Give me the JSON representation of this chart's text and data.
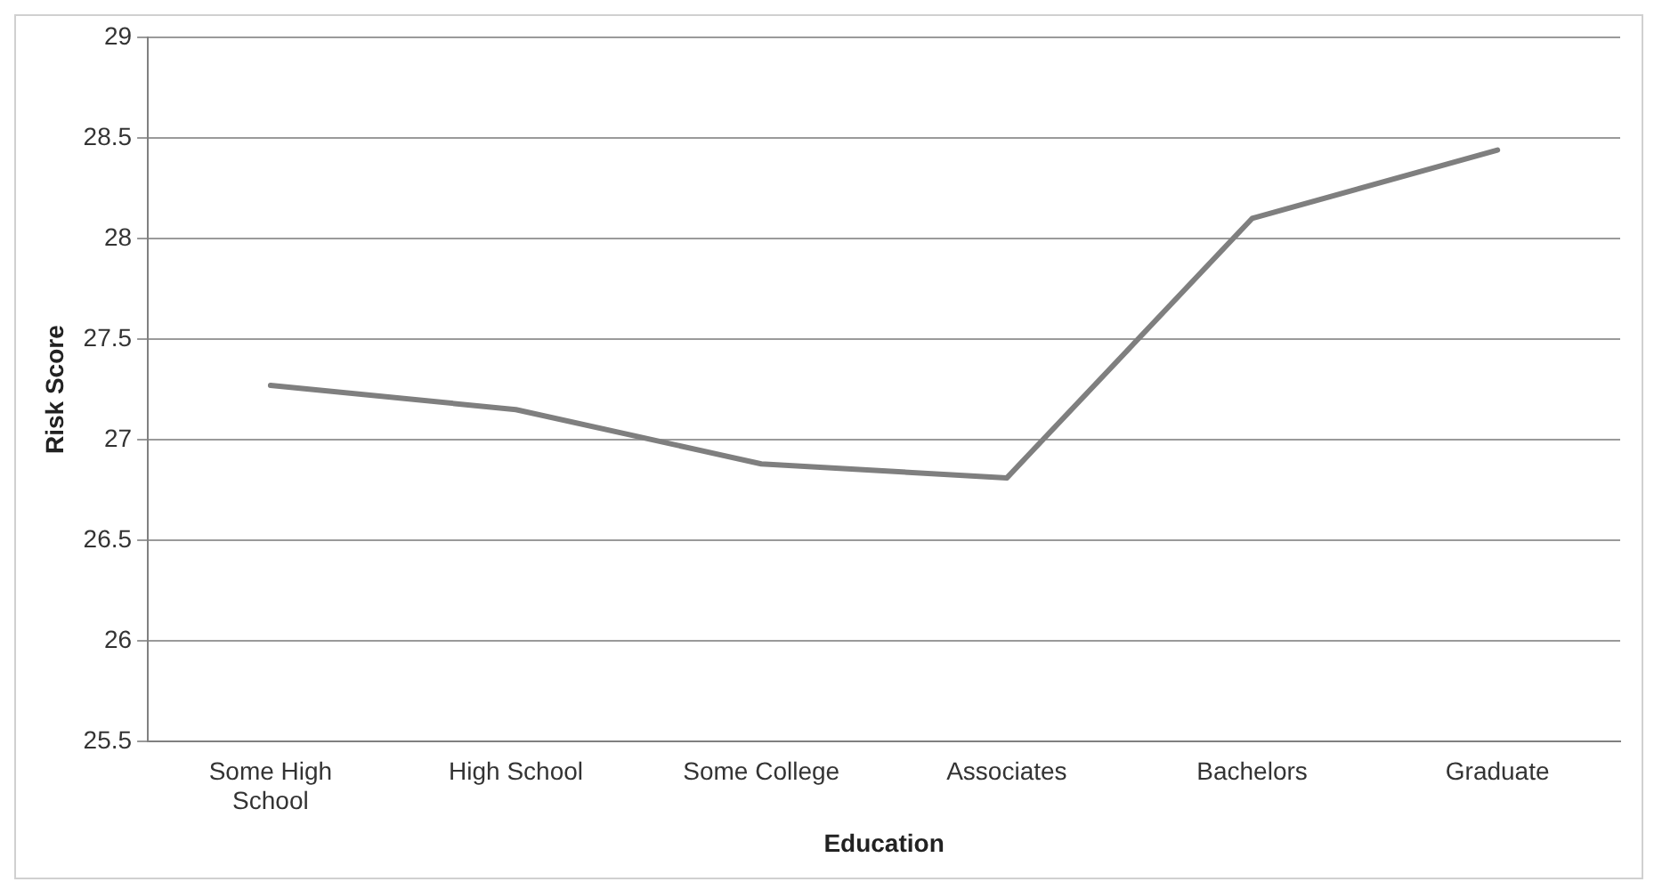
{
  "chart_data": {
    "type": "line",
    "xlabel": "Education",
    "ylabel": "Risk Score",
    "categories": [
      "Some High School",
      "High School",
      "Some College",
      "Associates",
      "Bachelors",
      "Graduate"
    ],
    "series": [
      {
        "color": "#7f7f7f",
        "values": [
          27.27,
          27.15,
          26.88,
          26.81,
          28.1,
          28.44
        ]
      }
    ],
    "ylim": [
      25.5,
      29
    ],
    "yticks": [
      25.5,
      26,
      26.5,
      27,
      27.5,
      28,
      28.5,
      29
    ],
    "grid": "y",
    "legend": false,
    "marker": "none",
    "line_style": "solid"
  }
}
